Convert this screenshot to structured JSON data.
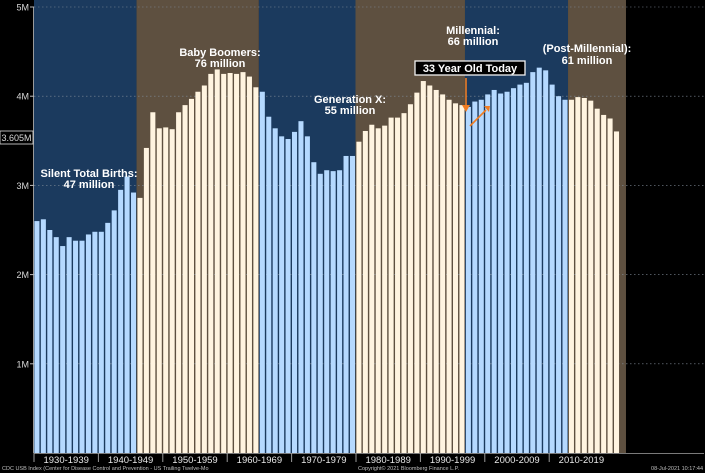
{
  "chart_data": {
    "type": "bar",
    "title": "",
    "xlabel": "",
    "ylabel": "",
    "ylim": [
      0,
      5
    ],
    "y_ticks": [
      "1M",
      "2M",
      "3M",
      "4M",
      "5M"
    ],
    "last_value_label": "3.605M",
    "x": [
      1930,
      1931,
      1932,
      1933,
      1934,
      1935,
      1936,
      1937,
      1938,
      1939,
      1940,
      1941,
      1942,
      1943,
      1944,
      1945,
      1946,
      1947,
      1948,
      1949,
      1950,
      1951,
      1952,
      1953,
      1954,
      1955,
      1956,
      1957,
      1958,
      1959,
      1960,
      1961,
      1962,
      1963,
      1964,
      1965,
      1966,
      1967,
      1968,
      1969,
      1970,
      1971,
      1972,
      1973,
      1974,
      1975,
      1976,
      1977,
      1978,
      1979,
      1980,
      1981,
      1982,
      1983,
      1984,
      1985,
      1986,
      1987,
      1988,
      1989,
      1990,
      1991,
      1992,
      1993,
      1994,
      1995,
      1996,
      1997,
      1998,
      1999,
      2000,
      2001,
      2002,
      2003,
      2004,
      2005,
      2006,
      2007,
      2008,
      2009,
      2010,
      2011,
      2012,
      2013,
      2014,
      2015,
      2016,
      2017,
      2018,
      2019,
      2020
    ],
    "values": [
      2.6,
      2.62,
      2.5,
      2.42,
      2.32,
      2.42,
      2.38,
      2.38,
      2.45,
      2.48,
      2.48,
      2.58,
      2.72,
      2.95,
      3.1,
      2.92,
      2.86,
      3.42,
      3.82,
      3.64,
      3.65,
      3.63,
      3.82,
      3.9,
      3.97,
      4.05,
      4.12,
      4.25,
      4.3,
      4.25,
      4.26,
      4.25,
      4.27,
      4.22,
      4.1,
      4.05,
      3.77,
      3.64,
      3.55,
      3.52,
      3.6,
      3.72,
      3.55,
      3.26,
      3.13,
      3.17,
      3.16,
      3.17,
      3.33,
      3.33,
      3.49,
      3.61,
      3.68,
      3.64,
      3.67,
      3.76,
      3.76,
      3.81,
      3.91,
      4.04,
      4.17,
      4.12,
      4.07,
      4.02,
      3.96,
      3.92,
      3.9,
      3.88,
      3.94,
      3.96,
      4.02,
      4.07,
      4.03,
      4.05,
      4.09,
      4.13,
      4.15,
      4.27,
      4.32,
      4.29,
      4.13,
      4.0,
      3.96,
      3.96,
      3.99,
      3.98,
      3.95,
      3.86,
      3.79,
      3.75,
      3.605
    ],
    "bands": [
      {
        "label": "1930-1939",
        "start": 1930,
        "end": 1939
      },
      {
        "label": "1940-1949",
        "start": 1940,
        "end": 1949
      },
      {
        "label": "1950-1959",
        "start": 1950,
        "end": 1959
      },
      {
        "label": "1960-1969",
        "start": 1960,
        "end": 1969
      },
      {
        "label": "1970-1979",
        "start": 1970,
        "end": 1979
      },
      {
        "label": "1980-1989",
        "start": 1980,
        "end": 1989
      },
      {
        "label": "1990-1999",
        "start": 1990,
        "end": 1999
      },
      {
        "label": "2000-2009",
        "start": 2000,
        "end": 2009
      },
      {
        "label": "2010-2019",
        "start": 2010,
        "end": 2019
      }
    ],
    "generations": [
      {
        "name": "Silent Total Births:",
        "total": "47 million",
        "start": 1928,
        "end": 1945,
        "style": "blue"
      },
      {
        "name": "Baby Boomers:",
        "total": "76 million",
        "start": 1946,
        "end": 1964,
        "style": "cream"
      },
      {
        "name": "Generation X:",
        "total": "55 million",
        "start": 1965,
        "end": 1979,
        "style": "blue"
      },
      {
        "name": "Millennial:",
        "total": "66 million",
        "start": 1980,
        "end": 1996,
        "style": "cream"
      },
      {
        "name": "(Post-Millennial):",
        "total": "61 million",
        "start": 1997,
        "end": 2012,
        "style": "blue"
      },
      {
        "name": "",
        "total": "",
        "start": 2013,
        "end": 2021,
        "style": "cream"
      }
    ],
    "annotation": {
      "text": "33 Year Old Today",
      "year": 1988
    },
    "colors": {
      "blue_bg": "#1b3a5e",
      "blue_bar": "#b5d9ff",
      "cream_bg": "#5e5040",
      "cream_bar": "#fff4e0",
      "annotation_arrow": "#f07d22"
    }
  },
  "footer": {
    "source": "CDC USB Index (Center for Disease Control and Prevention - US Trailing Twelve-Mo",
    "copyright": "Copyright© 2021 Bloomberg Finance L.P.",
    "timestamp": "08-Jul-2021 10:17:44"
  }
}
